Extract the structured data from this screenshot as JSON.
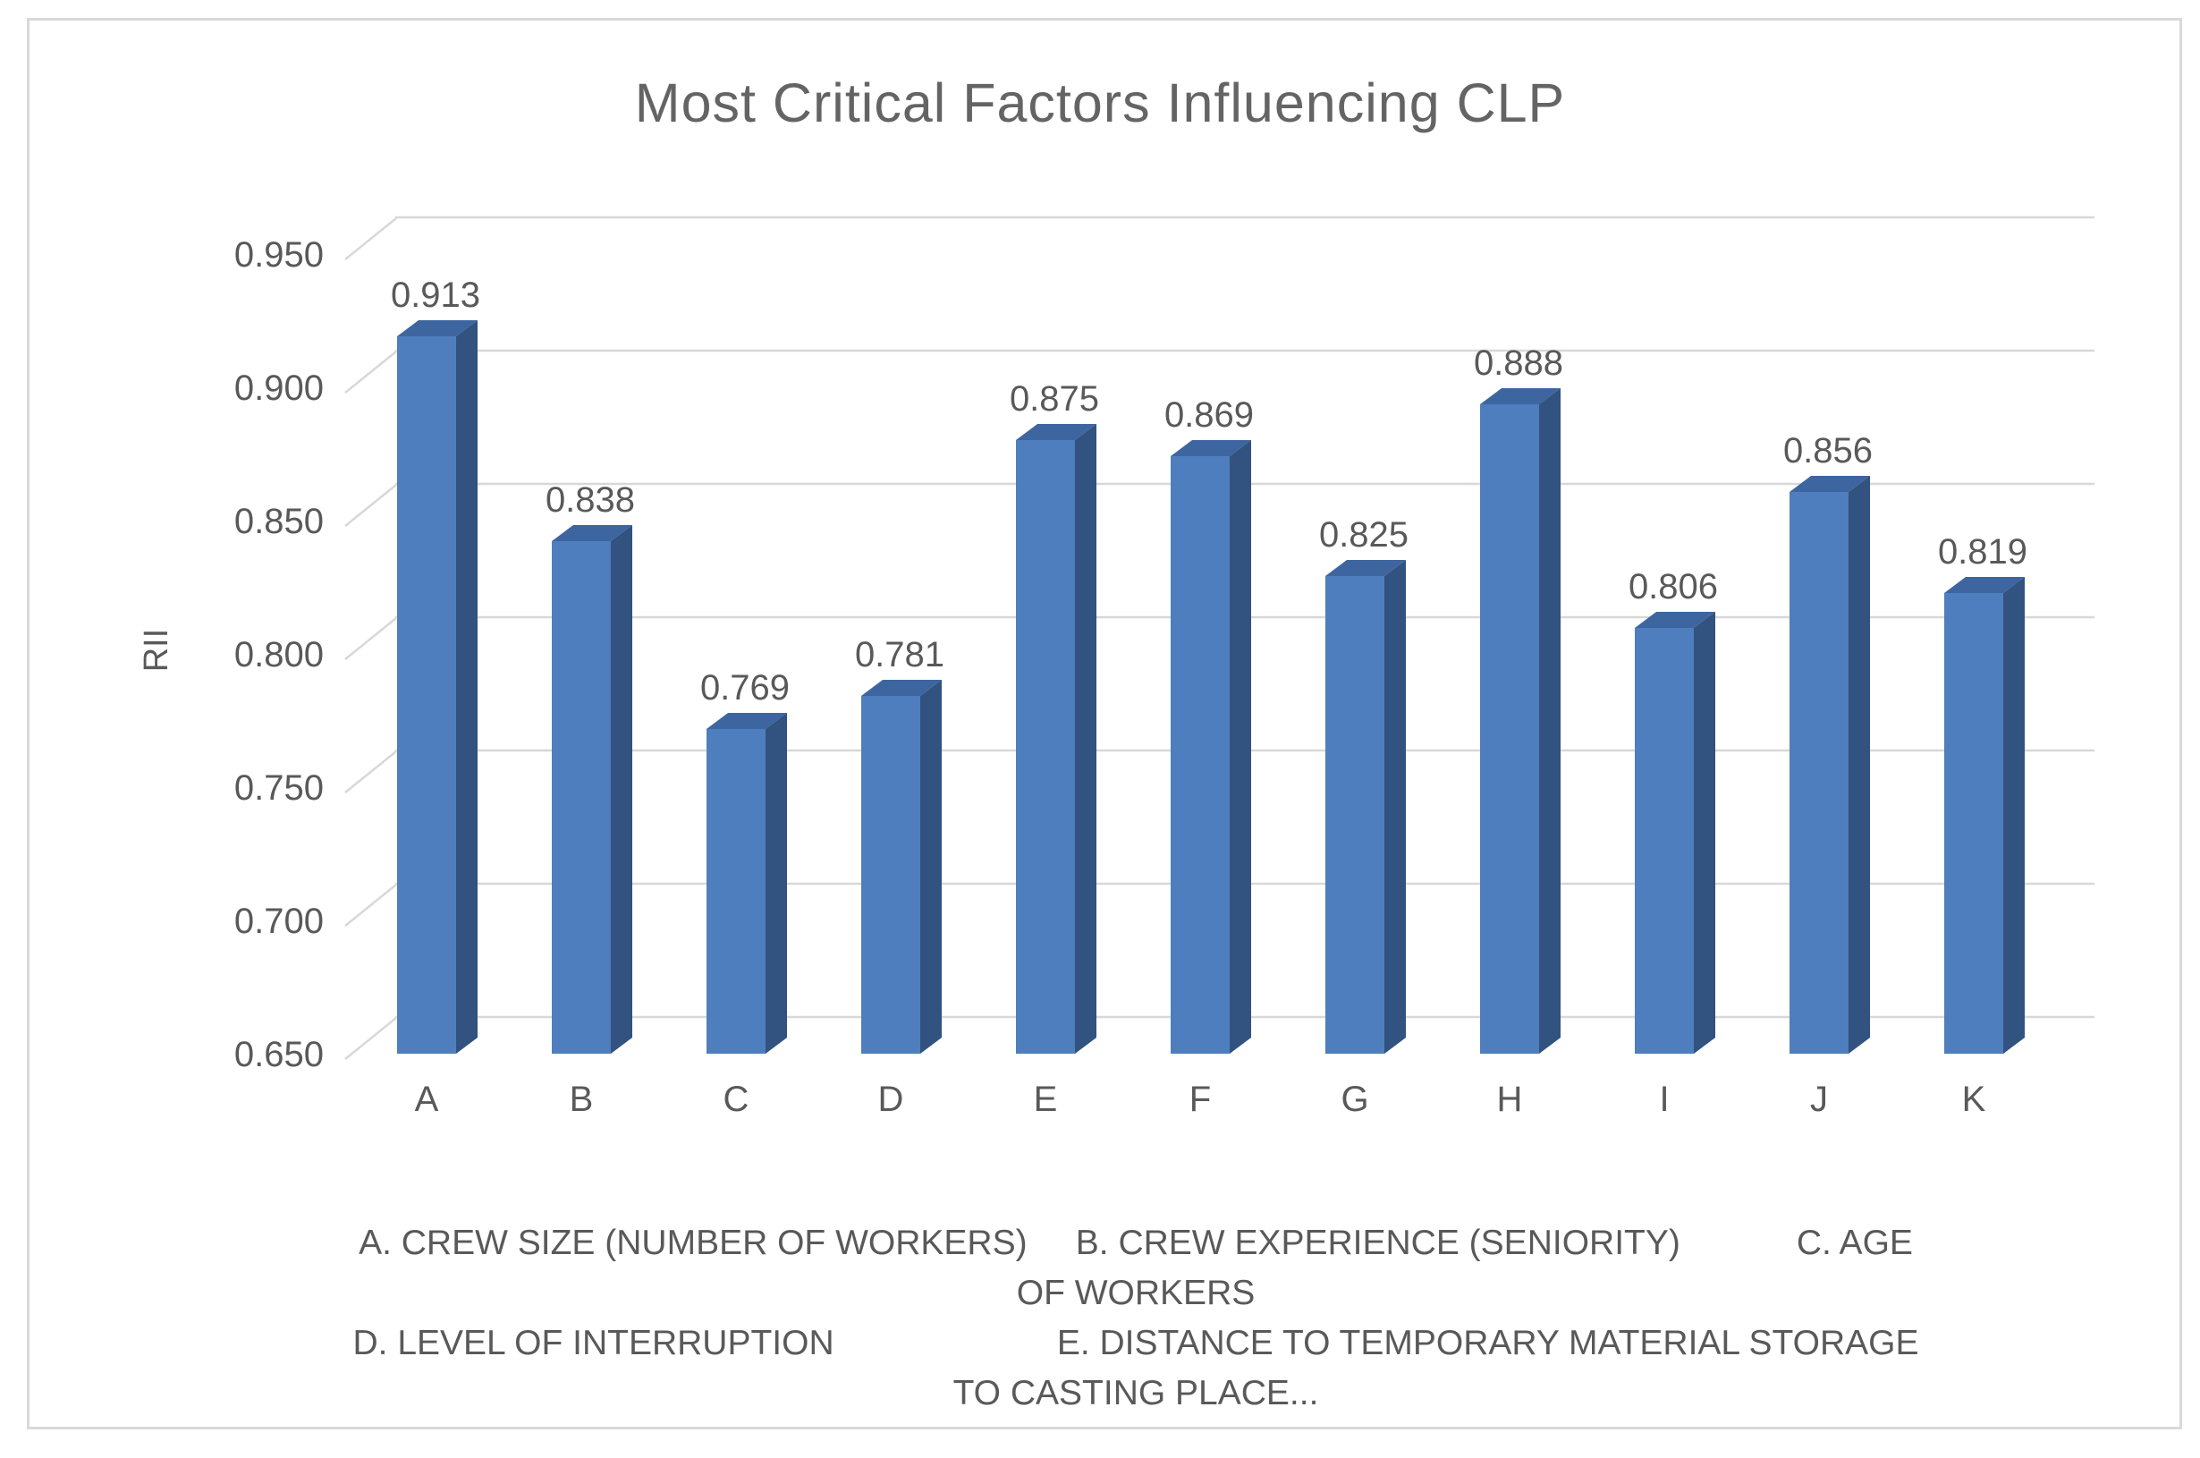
{
  "chart_data": {
    "type": "bar",
    "style": "3d-column",
    "title": "Most Critical Factors Influencing CLP",
    "ylabel": "RII",
    "xlabel": "",
    "categories": [
      "A",
      "B",
      "C",
      "D",
      "E",
      "F",
      "G",
      "H",
      "I",
      "J",
      "K"
    ],
    "values": [
      0.913,
      0.838,
      0.769,
      0.781,
      0.875,
      0.869,
      0.825,
      0.888,
      0.806,
      0.856,
      0.819
    ],
    "data_labels": [
      "0.913",
      "0.838",
      "0.769",
      "0.781",
      "0.875",
      "0.869",
      "0.825",
      "0.888",
      "0.806",
      "0.856",
      "0.819"
    ],
    "ytick_labels": [
      "0.950",
      "0.900",
      "0.850",
      "0.800",
      "0.750",
      "0.700",
      "0.650"
    ],
    "ytick_values": [
      0.95,
      0.9,
      0.85,
      0.8,
      0.75,
      0.7,
      0.65
    ],
    "ylim": [
      0.65,
      0.95
    ],
    "grid": true,
    "legend_position": "none",
    "colors": {
      "bar_front": "#4e7ebd",
      "bar_side": "#32527f",
      "bar_top": "#3d66a0",
      "gridline": "#d8d8d8",
      "axis_text": "#595959",
      "title_text": "#646464",
      "frame_border": "#d9d9d9"
    },
    "footnote_lines": [
      "A. CREW SIZE (NUMBER OF WORKERS)     B. CREW EXPERIENCE (SENIORITY)            C. AGE",
      "OF WORKERS",
      "D. LEVEL OF INTERRUPTION                       E. DISTANCE TO TEMPORARY MATERIAL STORAGE",
      "TO CASTING PLACE..."
    ]
  }
}
